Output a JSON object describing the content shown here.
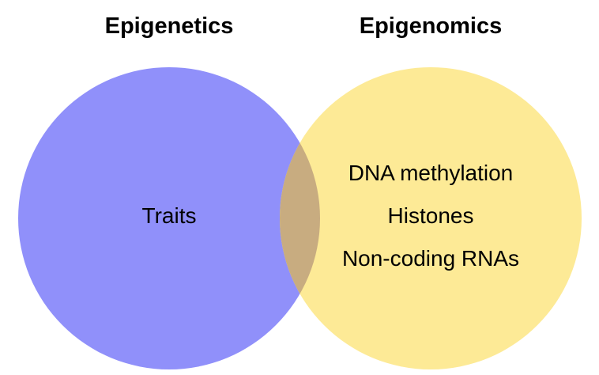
{
  "diagram": {
    "type": "venn",
    "sets": [
      {
        "title": "Epigenetics",
        "color": "#9090FA",
        "items": [
          "Traits"
        ]
      },
      {
        "title": "Epigenomics",
        "color": "#FDEA96",
        "items": [
          "DNA methylation",
          "Histones",
          "Non-coding RNAs"
        ]
      }
    ],
    "overlap_color": "#C8AC80"
  }
}
